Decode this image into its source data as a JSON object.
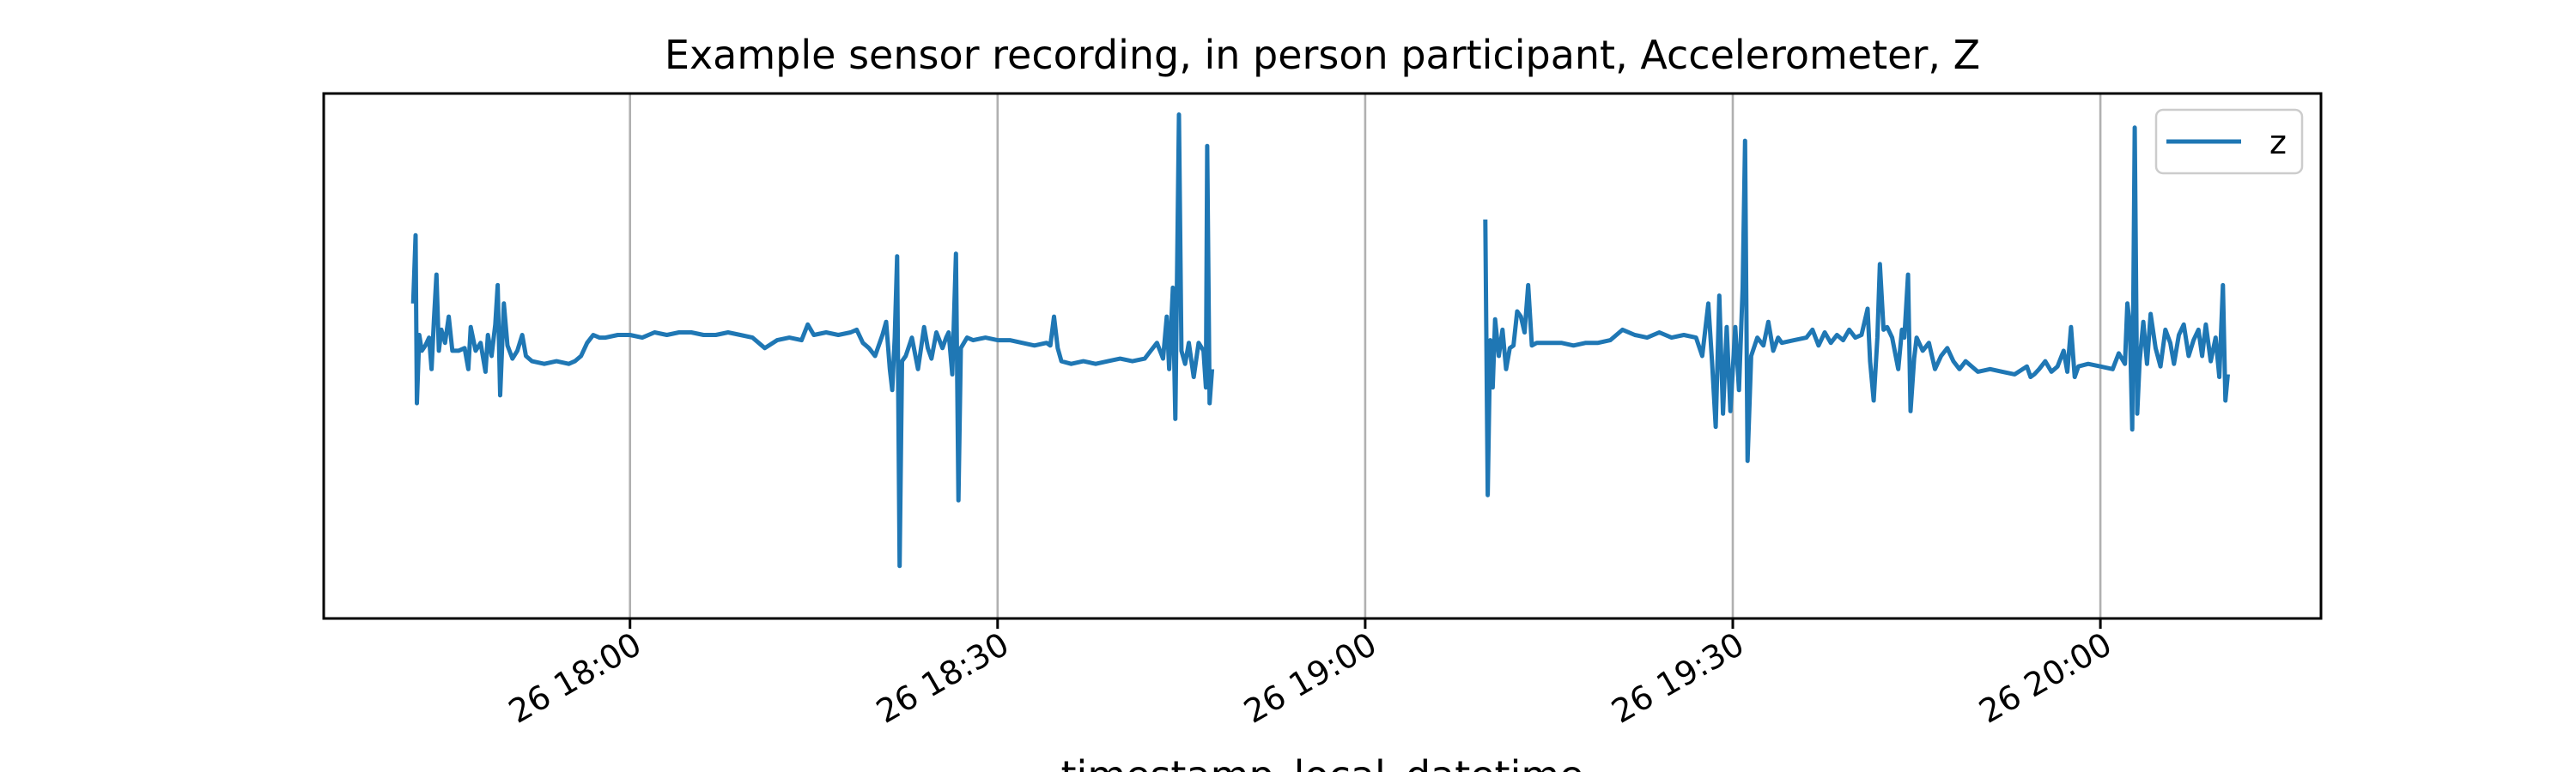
{
  "chart_data": {
    "type": "line",
    "title": "Example sensor recording, in person participant, Accelerometer, Z",
    "xlabel": "timestamp_local_datetime",
    "ylabel": "",
    "x_unit": "minutes of the day (clock time)",
    "xlim": [
      1055,
      1218
    ],
    "ylim": [
      -1.0,
      1.0
    ],
    "grid": {
      "x": true,
      "y": false
    },
    "legend_position": "upper right",
    "x_ticks": [
      {
        "value": 1080,
        "label": "26 18:00"
      },
      {
        "value": 1110,
        "label": "26 18:30"
      },
      {
        "value": 1140,
        "label": "26 19:00"
      },
      {
        "value": 1170,
        "label": "26 19:30"
      },
      {
        "value": 1200,
        "label": "26 20:00"
      }
    ],
    "series": [
      {
        "name": "z",
        "color": "#1f77b4",
        "segments": [
          [
            [
              1062.3,
              0.2
            ],
            [
              1062.5,
              0.46
            ],
            [
              1062.6,
              -0.18
            ],
            [
              1062.8,
              0.08
            ],
            [
              1063.0,
              0.02
            ],
            [
              1063.3,
              0.04
            ],
            [
              1063.6,
              0.07
            ],
            [
              1063.8,
              -0.05
            ],
            [
              1064.0,
              0.14
            ],
            [
              1064.2,
              0.31
            ],
            [
              1064.4,
              0.02
            ],
            [
              1064.6,
              0.1
            ],
            [
              1064.9,
              0.05
            ],
            [
              1065.2,
              0.15
            ],
            [
              1065.5,
              0.02
            ],
            [
              1066.0,
              0.02
            ],
            [
              1066.5,
              0.03
            ],
            [
              1066.8,
              -0.05
            ],
            [
              1067.0,
              0.11
            ],
            [
              1067.4,
              0.02
            ],
            [
              1067.8,
              0.05
            ],
            [
              1068.2,
              -0.06
            ],
            [
              1068.4,
              0.08
            ],
            [
              1068.7,
              0.0
            ],
            [
              1069.0,
              0.12
            ],
            [
              1069.2,
              0.27
            ],
            [
              1069.4,
              -0.15
            ],
            [
              1069.7,
              0.2
            ],
            [
              1070.0,
              0.04
            ],
            [
              1070.4,
              -0.01
            ],
            [
              1070.8,
              0.02
            ],
            [
              1071.2,
              0.08
            ],
            [
              1071.5,
              0.0
            ],
            [
              1072.0,
              -0.02
            ],
            [
              1073.0,
              -0.03
            ],
            [
              1074.0,
              -0.02
            ],
            [
              1075.0,
              -0.03
            ],
            [
              1075.5,
              -0.02
            ],
            [
              1076.0,
              0.0
            ],
            [
              1076.5,
              0.05
            ],
            [
              1077.0,
              0.08
            ],
            [
              1077.5,
              0.07
            ],
            [
              1078.0,
              0.07
            ],
            [
              1079.0,
              0.08
            ],
            [
              1080.0,
              0.08
            ],
            [
              1081.0,
              0.07
            ],
            [
              1082.0,
              0.09
            ],
            [
              1083.0,
              0.08
            ],
            [
              1084.0,
              0.09
            ],
            [
              1085.0,
              0.09
            ],
            [
              1086.0,
              0.08
            ],
            [
              1087.0,
              0.08
            ],
            [
              1088.0,
              0.09
            ],
            [
              1089.0,
              0.08
            ],
            [
              1090.0,
              0.07
            ],
            [
              1091.0,
              0.03
            ],
            [
              1092.0,
              0.06
            ],
            [
              1093.0,
              0.07
            ],
            [
              1094.0,
              0.06
            ],
            [
              1094.5,
              0.12
            ],
            [
              1095.0,
              0.08
            ],
            [
              1096.0,
              0.09
            ],
            [
              1097.0,
              0.08
            ],
            [
              1098.0,
              0.09
            ],
            [
              1098.5,
              0.1
            ],
            [
              1099.0,
              0.05
            ],
            [
              1099.5,
              0.03
            ],
            [
              1100.0,
              0.0
            ],
            [
              1100.6,
              0.08
            ],
            [
              1100.9,
              0.13
            ],
            [
              1101.2,
              -0.05
            ],
            [
              1101.4,
              -0.13
            ],
            [
              1101.6,
              0.07
            ],
            [
              1101.8,
              0.38
            ],
            [
              1102.0,
              -0.8
            ],
            [
              1102.2,
              -0.02
            ],
            [
              1102.5,
              0.0
            ],
            [
              1103.0,
              0.07
            ],
            [
              1103.5,
              -0.05
            ],
            [
              1104.0,
              0.11
            ],
            [
              1104.3,
              0.03
            ],
            [
              1104.6,
              -0.01
            ],
            [
              1105.0,
              0.09
            ],
            [
              1105.5,
              0.03
            ],
            [
              1105.8,
              0.07
            ],
            [
              1106.0,
              0.09
            ],
            [
              1106.3,
              -0.07
            ],
            [
              1106.6,
              0.39
            ],
            [
              1106.8,
              -0.55
            ],
            [
              1107.0,
              0.03
            ],
            [
              1107.5,
              0.07
            ],
            [
              1108.0,
              0.06
            ],
            [
              1109.0,
              0.07
            ],
            [
              1110.0,
              0.06
            ],
            [
              1111.0,
              0.06
            ],
            [
              1112.0,
              0.05
            ],
            [
              1113.0,
              0.04
            ],
            [
              1114.0,
              0.05
            ],
            [
              1114.3,
              0.04
            ],
            [
              1114.6,
              0.15
            ],
            [
              1114.9,
              0.03
            ],
            [
              1115.2,
              -0.02
            ],
            [
              1116.0,
              -0.03
            ],
            [
              1117.0,
              -0.02
            ],
            [
              1118.0,
              -0.03
            ],
            [
              1119.0,
              -0.02
            ],
            [
              1120.0,
              -0.01
            ],
            [
              1121.0,
              -0.02
            ],
            [
              1122.0,
              -0.01
            ],
            [
              1122.5,
              0.02
            ],
            [
              1123.0,
              0.05
            ],
            [
              1123.5,
              -0.01
            ],
            [
              1123.8,
              0.15
            ],
            [
              1124.0,
              -0.05
            ],
            [
              1124.3,
              0.26
            ],
            [
              1124.5,
              -0.24
            ],
            [
              1124.8,
              0.92
            ],
            [
              1125.0,
              0.02
            ],
            [
              1125.3,
              -0.03
            ],
            [
              1125.6,
              0.05
            ],
            [
              1126.0,
              -0.08
            ],
            [
              1126.4,
              0.05
            ],
            [
              1126.8,
              0.02
            ],
            [
              1127.0,
              -0.12
            ],
            [
              1127.1,
              0.8
            ],
            [
              1127.3,
              -0.18
            ],
            [
              1127.5,
              -0.05
            ]
          ],
          [
            [
              1149.8,
              0.52
            ],
            [
              1150.0,
              -0.53
            ],
            [
              1150.2,
              0.06
            ],
            [
              1150.4,
              -0.12
            ],
            [
              1150.6,
              0.14
            ],
            [
              1150.9,
              0.0
            ],
            [
              1151.2,
              0.1
            ],
            [
              1151.5,
              -0.05
            ],
            [
              1151.8,
              0.03
            ],
            [
              1152.1,
              0.04
            ],
            [
              1152.4,
              0.17
            ],
            [
              1152.7,
              0.15
            ],
            [
              1153.0,
              0.09
            ],
            [
              1153.3,
              0.27
            ],
            [
              1153.6,
              0.04
            ],
            [
              1154.0,
              0.05
            ],
            [
              1155.0,
              0.05
            ],
            [
              1156.0,
              0.05
            ],
            [
              1157.0,
              0.04
            ],
            [
              1158.0,
              0.05
            ],
            [
              1159.0,
              0.05
            ],
            [
              1160.0,
              0.06
            ],
            [
              1161.0,
              0.1
            ],
            [
              1162.0,
              0.08
            ],
            [
              1163.0,
              0.07
            ],
            [
              1164.0,
              0.09
            ],
            [
              1165.0,
              0.07
            ],
            [
              1166.0,
              0.08
            ],
            [
              1167.0,
              0.07
            ],
            [
              1167.5,
              0.0
            ],
            [
              1168.0,
              0.2
            ],
            [
              1168.3,
              -0.02
            ],
            [
              1168.6,
              -0.27
            ],
            [
              1168.9,
              0.23
            ],
            [
              1169.2,
              -0.22
            ],
            [
              1169.5,
              0.11
            ],
            [
              1169.8,
              -0.21
            ],
            [
              1170.2,
              0.11
            ],
            [
              1170.5,
              -0.13
            ],
            [
              1170.8,
              0.26
            ],
            [
              1171.0,
              0.82
            ],
            [
              1171.2,
              -0.4
            ],
            [
              1171.5,
              0.0
            ],
            [
              1172.0,
              0.07
            ],
            [
              1172.5,
              0.04
            ],
            [
              1172.9,
              0.13
            ],
            [
              1173.3,
              0.02
            ],
            [
              1173.7,
              0.07
            ],
            [
              1174.0,
              0.05
            ],
            [
              1175.0,
              0.06
            ],
            [
              1176.0,
              0.07
            ],
            [
              1176.5,
              0.1
            ],
            [
              1177.0,
              0.04
            ],
            [
              1177.5,
              0.09
            ],
            [
              1178.0,
              0.05
            ],
            [
              1178.5,
              0.08
            ],
            [
              1179.0,
              0.06
            ],
            [
              1179.5,
              0.1
            ],
            [
              1180.0,
              0.07
            ],
            [
              1180.5,
              0.08
            ],
            [
              1181.0,
              0.18
            ],
            [
              1181.2,
              -0.02
            ],
            [
              1181.5,
              -0.17
            ],
            [
              1181.8,
              0.07
            ],
            [
              1182.0,
              0.35
            ],
            [
              1182.3,
              0.1
            ],
            [
              1182.6,
              0.11
            ],
            [
              1183.0,
              0.07
            ],
            [
              1183.5,
              -0.05
            ],
            [
              1183.8,
              0.1
            ],
            [
              1184.0,
              0.07
            ],
            [
              1184.3,
              0.31
            ],
            [
              1184.5,
              -0.21
            ],
            [
              1184.8,
              -0.01
            ],
            [
              1185.0,
              0.07
            ],
            [
              1185.5,
              0.02
            ],
            [
              1186.0,
              0.05
            ],
            [
              1186.5,
              -0.05
            ],
            [
              1187.0,
              0.0
            ],
            [
              1187.5,
              0.03
            ],
            [
              1188.0,
              -0.02
            ],
            [
              1188.5,
              -0.05
            ],
            [
              1189.0,
              -0.02
            ],
            [
              1190.0,
              -0.06
            ],
            [
              1191.0,
              -0.05
            ],
            [
              1192.0,
              -0.06
            ],
            [
              1193.0,
              -0.07
            ],
            [
              1194.0,
              -0.04
            ],
            [
              1194.3,
              -0.08
            ],
            [
              1194.6,
              -0.07
            ],
            [
              1195.0,
              -0.05
            ],
            [
              1195.5,
              -0.02
            ],
            [
              1196.0,
              -0.06
            ],
            [
              1196.5,
              -0.04
            ],
            [
              1197.0,
              0.02
            ],
            [
              1197.3,
              -0.06
            ],
            [
              1197.6,
              0.11
            ],
            [
              1197.9,
              -0.08
            ],
            [
              1198.2,
              -0.04
            ],
            [
              1199.0,
              -0.03
            ],
            [
              1200.0,
              -0.04
            ],
            [
              1201.0,
              -0.05
            ],
            [
              1201.5,
              0.01
            ],
            [
              1202.0,
              -0.03
            ],
            [
              1202.2,
              0.2
            ],
            [
              1202.4,
              0.12
            ],
            [
              1202.6,
              -0.28
            ],
            [
              1202.8,
              0.87
            ],
            [
              1203.0,
              -0.22
            ],
            [
              1203.2,
              -0.02
            ],
            [
              1203.5,
              0.13
            ],
            [
              1203.8,
              -0.03
            ],
            [
              1204.1,
              0.16
            ],
            [
              1204.5,
              0.03
            ],
            [
              1204.9,
              -0.04
            ],
            [
              1205.3,
              0.1
            ],
            [
              1205.7,
              0.05
            ],
            [
              1206.0,
              -0.03
            ],
            [
              1206.4,
              0.08
            ],
            [
              1206.8,
              0.12
            ],
            [
              1207.2,
              0.0
            ],
            [
              1207.6,
              0.06
            ],
            [
              1208.0,
              0.1
            ],
            [
              1208.3,
              0.0
            ],
            [
              1208.6,
              0.12
            ],
            [
              1209.0,
              -0.02
            ],
            [
              1209.4,
              0.07
            ],
            [
              1209.7,
              -0.08
            ],
            [
              1210.0,
              0.27
            ],
            [
              1210.2,
              -0.17
            ],
            [
              1210.4,
              -0.07
            ]
          ]
        ]
      }
    ]
  }
}
